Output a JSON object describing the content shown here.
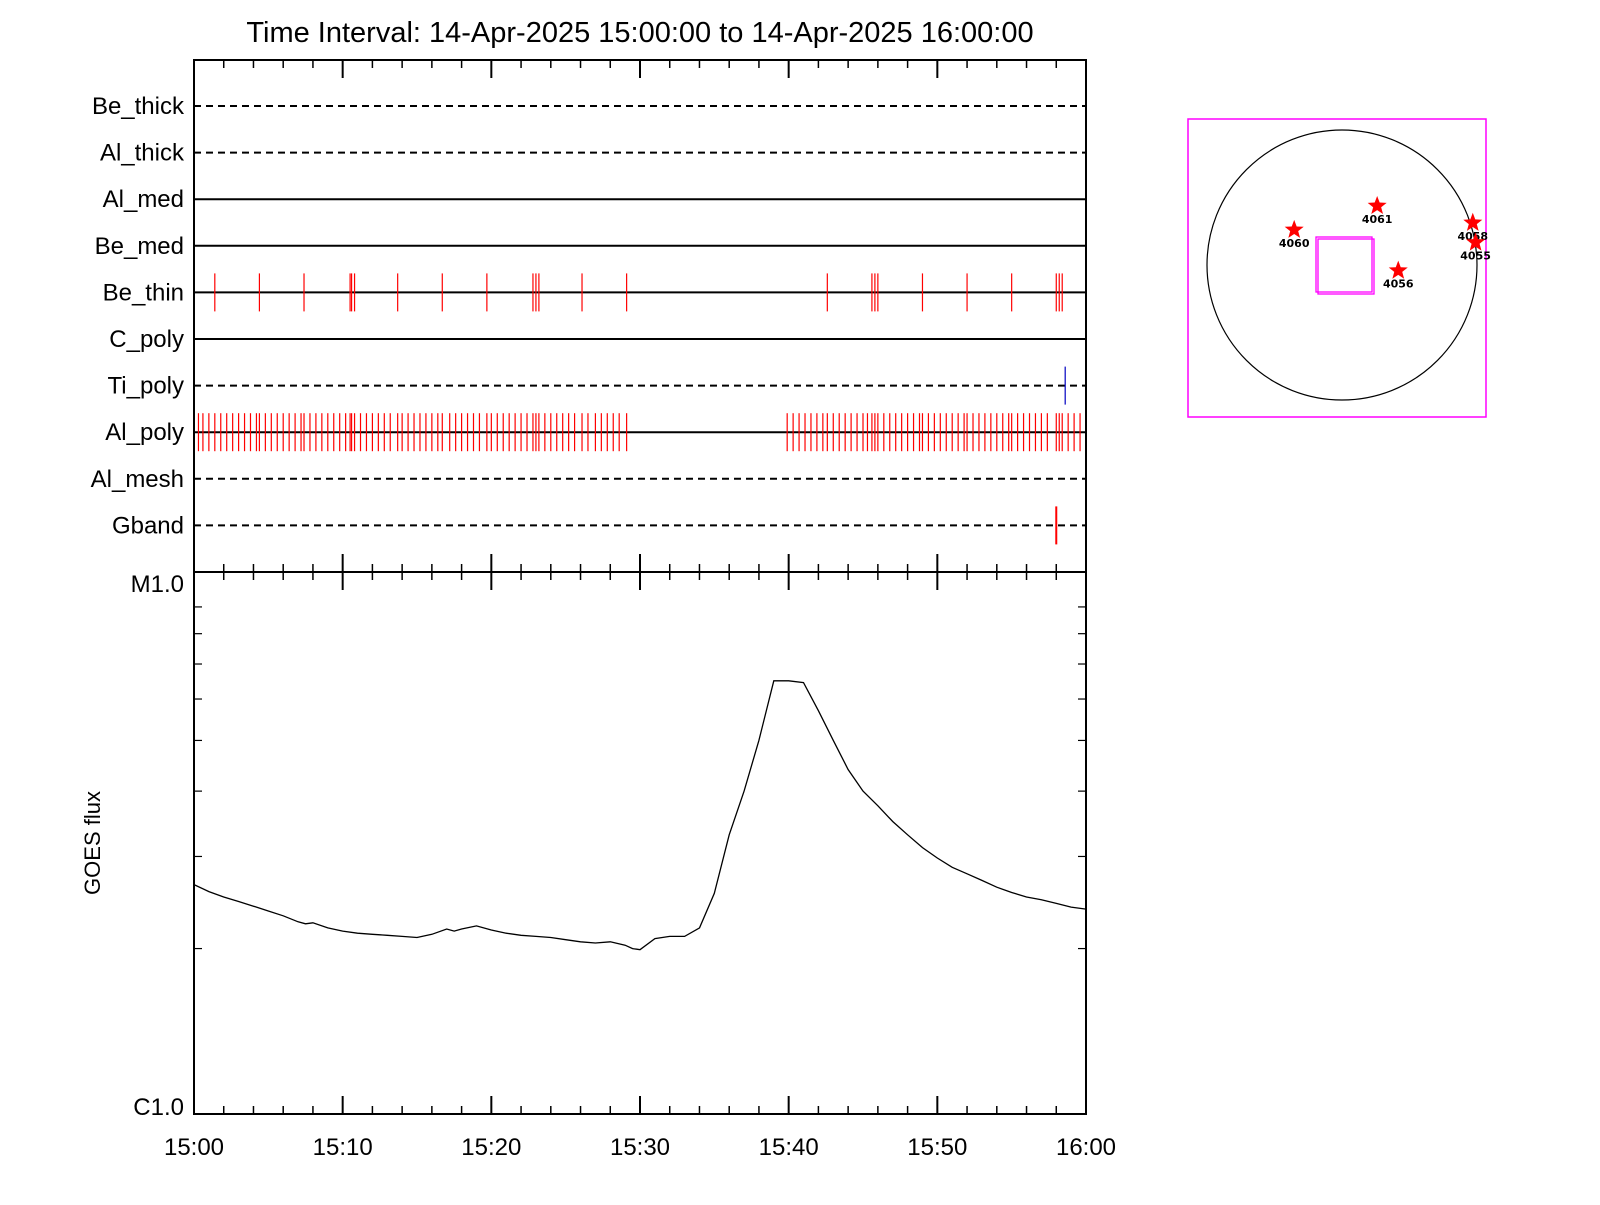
{
  "chart_data": [
    {
      "type": "line",
      "title": "Time Interval: 14-Apr-2025 15:00:00 to 14-Apr-2025 16:00:00",
      "x_axis": {
        "label": "",
        "range_minutes": [
          0,
          60
        ],
        "tick_labels": [
          "15:00",
          "15:10",
          "15:20",
          "15:30",
          "15:40",
          "15:50",
          "16:00"
        ],
        "tick_values_minutes": [
          0,
          10,
          20,
          30,
          40,
          50,
          60
        ],
        "minor_tick_step_minutes": 2
      },
      "attenuator_rows": [
        {
          "name": "Be_thick",
          "style": "dashed",
          "events": [],
          "event_color": "#ff0000"
        },
        {
          "name": "Al_thick",
          "style": "dashed",
          "events": [],
          "event_color": "#ff0000"
        },
        {
          "name": "Al_med",
          "style": "solid",
          "events": [],
          "event_color": "#ff0000"
        },
        {
          "name": "Be_med",
          "style": "solid",
          "events": [],
          "event_color": "#ff0000"
        },
        {
          "name": "Be_thin",
          "style": "solid",
          "event_color": "#ff0000",
          "events": [
            1.4,
            4.4,
            7.4,
            10.5,
            10.6,
            10.8,
            13.7,
            16.7,
            19.7,
            22.8,
            23.0,
            23.2,
            26.1,
            29.1,
            42.6,
            45.6,
            45.8,
            46.0,
            49.0,
            52.0,
            55.0,
            58.0,
            58.2,
            58.4
          ]
        },
        {
          "name": "C_poly",
          "style": "solid",
          "events": [],
          "event_color": "#ff0000"
        },
        {
          "name": "Ti_poly",
          "style": "dashed",
          "event_color": "#0000c0",
          "events": [
            58.6
          ]
        },
        {
          "name": "Al_poly",
          "style": "solid",
          "event_color": "#ff0000",
          "events": [
            0.3,
            0.6,
            1.0,
            1.4,
            1.8,
            2.2,
            2.6,
            3.0,
            3.4,
            3.8,
            4.2,
            4.4,
            4.8,
            5.2,
            5.6,
            6.0,
            6.4,
            6.8,
            7.2,
            7.4,
            7.8,
            8.2,
            8.6,
            9.0,
            9.4,
            9.8,
            10.2,
            10.5,
            10.6,
            10.8,
            11.2,
            11.6,
            12.0,
            12.4,
            12.8,
            13.2,
            13.7,
            14.0,
            14.4,
            14.8,
            15.2,
            15.6,
            16.0,
            16.4,
            16.7,
            17.2,
            17.6,
            18.0,
            18.4,
            18.8,
            19.2,
            19.7,
            20.0,
            20.4,
            20.8,
            21.2,
            21.6,
            22.0,
            22.4,
            22.8,
            23.0,
            23.2,
            23.6,
            24.0,
            24.4,
            24.8,
            25.2,
            25.6,
            26.1,
            26.5,
            27.0,
            27.4,
            27.8,
            28.2,
            28.6,
            29.1,
            39.9,
            40.3,
            40.7,
            41.1,
            41.5,
            41.9,
            42.3,
            42.6,
            43.0,
            43.4,
            43.8,
            44.2,
            44.6,
            45.0,
            45.3,
            45.6,
            45.8,
            46.0,
            46.4,
            46.8,
            47.2,
            47.6,
            48.0,
            48.4,
            48.8,
            49.0,
            49.4,
            49.8,
            50.2,
            50.6,
            51.0,
            51.4,
            51.8,
            52.0,
            52.4,
            52.8,
            53.2,
            53.6,
            54.0,
            54.4,
            54.8,
            55.0,
            55.4,
            55.8,
            56.2,
            56.6,
            57.0,
            57.4,
            58.0,
            58.2,
            58.4,
            58.8,
            59.2,
            59.6
          ]
        },
        {
          "name": "Al_mesh",
          "style": "dashed",
          "events": [],
          "event_color": "#ff0000"
        },
        {
          "name": "Gband",
          "style": "dashed",
          "event_color": "#ff0000",
          "events": [
            58.0
          ]
        }
      ]
    },
    {
      "type": "line",
      "ylabel": "GOES flux",
      "y_axis": {
        "scale": "log",
        "range": [
          1e-06,
          1e-05
        ],
        "tick_labels": [
          "C1.0",
          "M1.0"
        ],
        "tick_values": [
          1e-06,
          1e-05
        ]
      },
      "series": [
        {
          "color": "#000000",
          "x_minutes": [
            0,
            1,
            2,
            3,
            4,
            5,
            6,
            7,
            7.5,
            8,
            9,
            10,
            11,
            12,
            13,
            14,
            15,
            16,
            17,
            17.5,
            18,
            19,
            20,
            21,
            22,
            23,
            24,
            25,
            26,
            27,
            28,
            29,
            29.5,
            30,
            31,
            32,
            33,
            34,
            35,
            36,
            37,
            38,
            39,
            40,
            41,
            42,
            43,
            44,
            45,
            46,
            47,
            48,
            49,
            50,
            51,
            52,
            53,
            54,
            55,
            56,
            57,
            58,
            59,
            60
          ],
          "y_values": [
            2.65e-06,
            2.57e-06,
            2.51e-06,
            2.46e-06,
            2.41e-06,
            2.36e-06,
            2.31e-06,
            2.25e-06,
            2.23e-06,
            2.24e-06,
            2.19e-06,
            2.16e-06,
            2.14e-06,
            2.13e-06,
            2.12e-06,
            2.11e-06,
            2.1e-06,
            2.13e-06,
            2.18e-06,
            2.16e-06,
            2.18e-06,
            2.21e-06,
            2.17e-06,
            2.14e-06,
            2.12e-06,
            2.11e-06,
            2.1e-06,
            2.08e-06,
            2.06e-06,
            2.05e-06,
            2.06e-06,
            2.03e-06,
            2e-06,
            1.99e-06,
            2.09e-06,
            2.11e-06,
            2.11e-06,
            2.19e-06,
            2.55e-06,
            3.3e-06,
            4e-06,
            5e-06,
            6.5e-06,
            6.5e-06,
            6.45e-06,
            5.7e-06,
            5e-06,
            4.4e-06,
            4e-06,
            3.75e-06,
            3.5e-06,
            3.3e-06,
            3.12e-06,
            2.98e-06,
            2.86e-06,
            2.78e-06,
            2.7e-06,
            2.62e-06,
            2.56e-06,
            2.51e-06,
            2.48e-06,
            2.44e-06,
            2.4e-06,
            2.38e-06
          ]
        }
      ]
    }
  ],
  "sun_map": {
    "frame_color": "#ff00ff",
    "disk_color": "#000000",
    "marker_color": "#ff0000",
    "fov_color": "#ff00ff",
    "active_regions": [
      {
        "label": "4061",
        "x_arcsec": 250,
        "y_arcsec": 420
      },
      {
        "label": "4060",
        "x_arcsec": -340,
        "y_arcsec": 250
      },
      {
        "label": "4058",
        "x_arcsec": 930,
        "y_arcsec": 300
      },
      {
        "label": "4055",
        "x_arcsec": 950,
        "y_arcsec": 160
      },
      {
        "label": "4056",
        "x_arcsec": 400,
        "y_arcsec": -40
      }
    ]
  }
}
